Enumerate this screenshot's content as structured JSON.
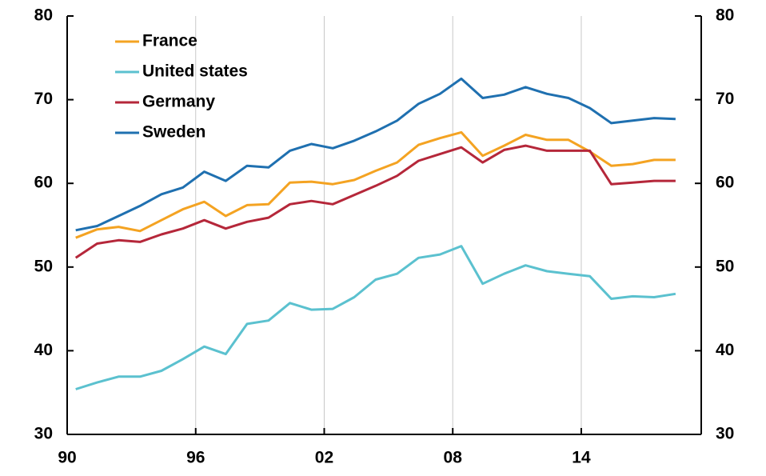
{
  "chart_data": {
    "type": "line",
    "x": [
      1990,
      1991,
      1992,
      1993,
      1994,
      1995,
      1996,
      1997,
      1998,
      1999,
      2000,
      2001,
      2002,
      2003,
      2004,
      2005,
      2006,
      2007,
      2008,
      2009,
      2010,
      2011,
      2012,
      2013,
      2014,
      2015,
      2016,
      2017,
      2018
    ],
    "series": [
      {
        "name": "France",
        "color": "#f4a322",
        "values": [
          53.5,
          54.5,
          54.8,
          54.3,
          55.6,
          56.9,
          57.8,
          56.1,
          57.4,
          57.5,
          60.1,
          60.2,
          59.9,
          60.4,
          61.5,
          62.5,
          64.6,
          65.4,
          66.1,
          63.3,
          64.5,
          65.8,
          65.2,
          65.2,
          63.8,
          62.1,
          62.3,
          62.8,
          62.8
        ]
      },
      {
        "name": "United states",
        "color": "#5bc1cf",
        "values": [
          35.4,
          36.2,
          36.9,
          36.9,
          37.6,
          39.0,
          40.5,
          39.6,
          43.2,
          43.6,
          45.7,
          44.9,
          45.0,
          46.4,
          48.5,
          49.2,
          51.1,
          51.5,
          52.5,
          48.0,
          49.2,
          50.2,
          49.5,
          49.2,
          48.9,
          46.2,
          46.5,
          46.4,
          46.8
        ]
      },
      {
        "name": "Germany",
        "color": "#b5273a",
        "values": [
          51.1,
          52.8,
          53.2,
          53.0,
          53.9,
          54.6,
          55.6,
          54.6,
          55.4,
          55.9,
          57.5,
          57.9,
          57.5,
          58.6,
          59.7,
          60.9,
          62.7,
          63.5,
          64.3,
          62.5,
          64.0,
          64.5,
          63.9,
          63.9,
          63.9,
          59.9,
          60.1,
          60.3,
          60.3
        ]
      },
      {
        "name": "Sweden",
        "color": "#1f70b0",
        "values": [
          54.4,
          54.9,
          56.1,
          57.3,
          58.7,
          59.5,
          61.4,
          60.3,
          62.1,
          61.9,
          63.9,
          64.7,
          64.2,
          65.1,
          66.2,
          67.5,
          69.5,
          70.7,
          72.5,
          70.2,
          70.6,
          71.5,
          70.7,
          70.2,
          69.0,
          67.2,
          67.5,
          67.8,
          67.7
        ]
      }
    ],
    "xlim": [
      1989.6,
      2019.2
    ],
    "xticks": [
      {
        "value": 1989.6,
        "label": "90"
      },
      {
        "value": 1995.6,
        "label": "96"
      },
      {
        "value": 2001.6,
        "label": "02"
      },
      {
        "value": 2007.6,
        "label": "08"
      },
      {
        "value": 2013.6,
        "label": "14"
      }
    ],
    "ylim": [
      30,
      80
    ],
    "yticks": [
      30,
      40,
      50,
      60,
      70,
      80
    ],
    "y2lim": [
      30,
      80
    ],
    "y2ticks": [
      30,
      40,
      50,
      60,
      70,
      80
    ],
    "grid": "x",
    "legend": "top-left"
  }
}
